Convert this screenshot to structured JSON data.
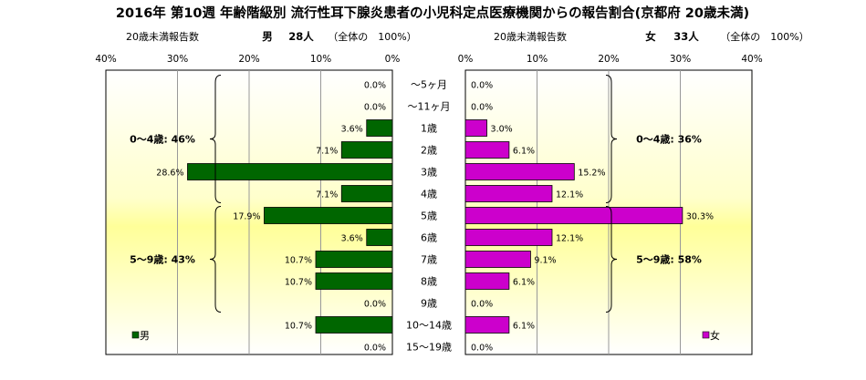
{
  "chart_data": {
    "type": "bar",
    "title": "2016年 第10週 年齢階級別 流行性耳下腺炎患者の小児科定点医療機関からの報告割合(京都府 20歳未満)",
    "left_header": {
      "subtitle": "20歳未満報告数",
      "sex": "男",
      "count": "28人",
      "share": "（全体の　100%）"
    },
    "right_header": {
      "subtitle": "20歳未満報告数",
      "sex": "女",
      "count": "33人",
      "share": "（全体の　100%）"
    },
    "x_ticks": [
      "40%",
      "30%",
      "20%",
      "10%",
      "0%"
    ],
    "x_ticks_right": [
      "0%",
      "10%",
      "20%",
      "30%",
      "40%"
    ],
    "xlim": [
      0,
      40
    ],
    "categories": [
      "～5ヶ月",
      "～11ヶ月",
      "1歳",
      "2歳",
      "3歳",
      "4歳",
      "5歳",
      "6歳",
      "7歳",
      "8歳",
      "9歳",
      "10～14歳",
      "15～19歳"
    ],
    "series": [
      {
        "name": "男",
        "color": "#006600",
        "values": [
          0.0,
          0.0,
          3.6,
          7.1,
          28.6,
          7.1,
          17.9,
          3.6,
          10.7,
          10.7,
          0.0,
          10.7,
          0.0
        ],
        "labels": [
          "0.0%",
          "0.0%",
          "3.6%",
          "7.1%",
          "28.6%",
          "7.1%",
          "17.9%",
          "3.6%",
          "10.7%",
          "10.7%",
          "0.0%",
          "10.7%",
          "0.0%"
        ]
      },
      {
        "name": "女",
        "color": "#cc00cc",
        "values": [
          0.0,
          0.0,
          3.0,
          6.1,
          15.2,
          12.1,
          30.3,
          12.1,
          9.1,
          6.1,
          0.0,
          6.1,
          0.0
        ],
        "labels": [
          "0.0%",
          "0.0%",
          "3.0%",
          "6.1%",
          "15.2%",
          "12.1%",
          "30.3%",
          "12.1%",
          "9.1%",
          "6.1%",
          "0.0%",
          "6.1%",
          "0.0%"
        ]
      }
    ],
    "group_labels": {
      "left": [
        {
          "text": "0～4歳: 46%",
          "from": 0,
          "to": 5
        },
        {
          "text": "5～9歳: 43%",
          "from": 6,
          "to": 10
        }
      ],
      "right": [
        {
          "text": "0～4歳: 36%",
          "from": 0,
          "to": 5
        },
        {
          "text": "5～9歳: 58%",
          "from": 6,
          "to": 10
        }
      ]
    },
    "legend": [
      "男",
      "女"
    ],
    "grid": true
  }
}
